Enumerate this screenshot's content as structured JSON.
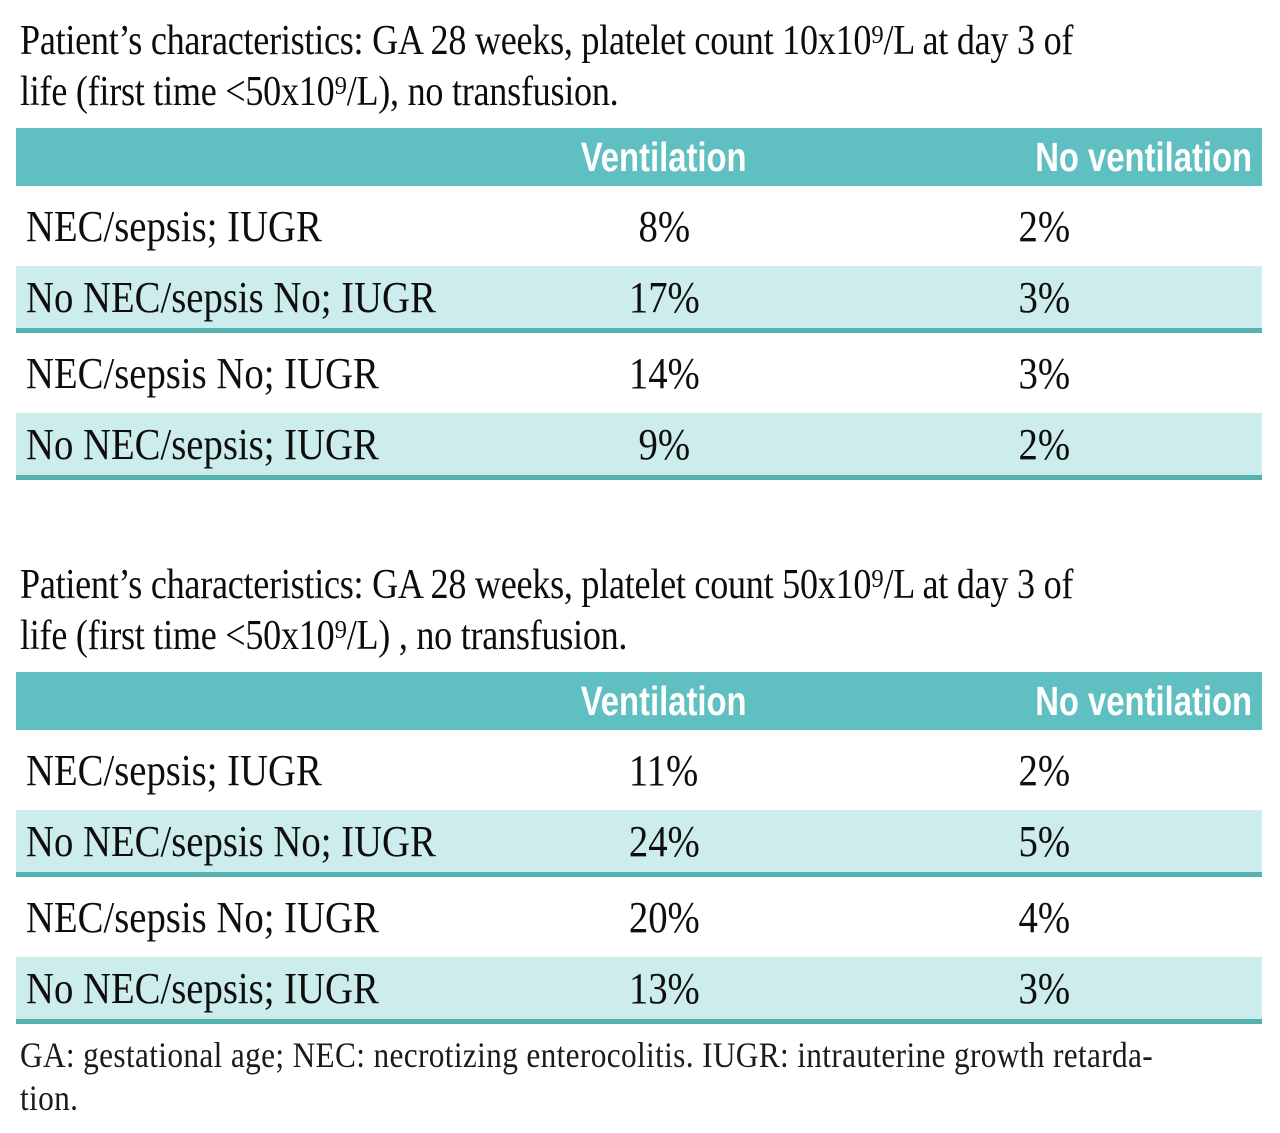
{
  "colors": {
    "header_bg": "#5fbfc1",
    "header_text": "#ffffff",
    "shaded_row_bg": "#cdecec",
    "shaded_row_border": "#55b2b0",
    "body_text": "#0e0e0e"
  },
  "sections": [
    {
      "caption_line1": "Patient’s characteristics: GA 28 weeks, platelet count 10x10⁹/L at day 3 of",
      "caption_line2": "life (first time <50x10⁹/L), no transfusion.",
      "columns": [
        "",
        "Ventilation",
        "No ventilation"
      ],
      "rows": [
        {
          "label": "NEC/sepsis; IUGR",
          "ventilation": "8%",
          "no_ventilation": "2%"
        },
        {
          "label": "No NEC/sepsis No; IUGR",
          "ventilation": "17%",
          "no_ventilation": "3%"
        },
        {
          "label": "NEC/sepsis No; IUGR",
          "ventilation": "14%",
          "no_ventilation": "3%"
        },
        {
          "label": "No NEC/sepsis; IUGR",
          "ventilation": "9%",
          "no_ventilation": "2%"
        }
      ]
    },
    {
      "caption_line1": "Patient’s characteristics: GA 28 weeks, platelet count 50x10⁹/L at day 3 of",
      "caption_line2": "life (first time <50x10⁹/L) , no transfusion.",
      "columns": [
        "",
        "Ventilation",
        "No ventilation"
      ],
      "rows": [
        {
          "label": "NEC/sepsis; IUGR",
          "ventilation": "11%",
          "no_ventilation": "2%"
        },
        {
          "label": "No NEC/sepsis No; IUGR",
          "ventilation": "24%",
          "no_ventilation": "5%"
        },
        {
          "label": "NEC/sepsis No; IUGR",
          "ventilation": "20%",
          "no_ventilation": "4%"
        },
        {
          "label": "No NEC/sepsis; IUGR",
          "ventilation": "13%",
          "no_ventilation": "3%"
        }
      ]
    }
  ],
  "footnote_line1": "GA: gestational age; NEC: necrotizing enterocolitis. IUGR: intrauterine growth retarda-",
  "footnote_line2": "tion."
}
